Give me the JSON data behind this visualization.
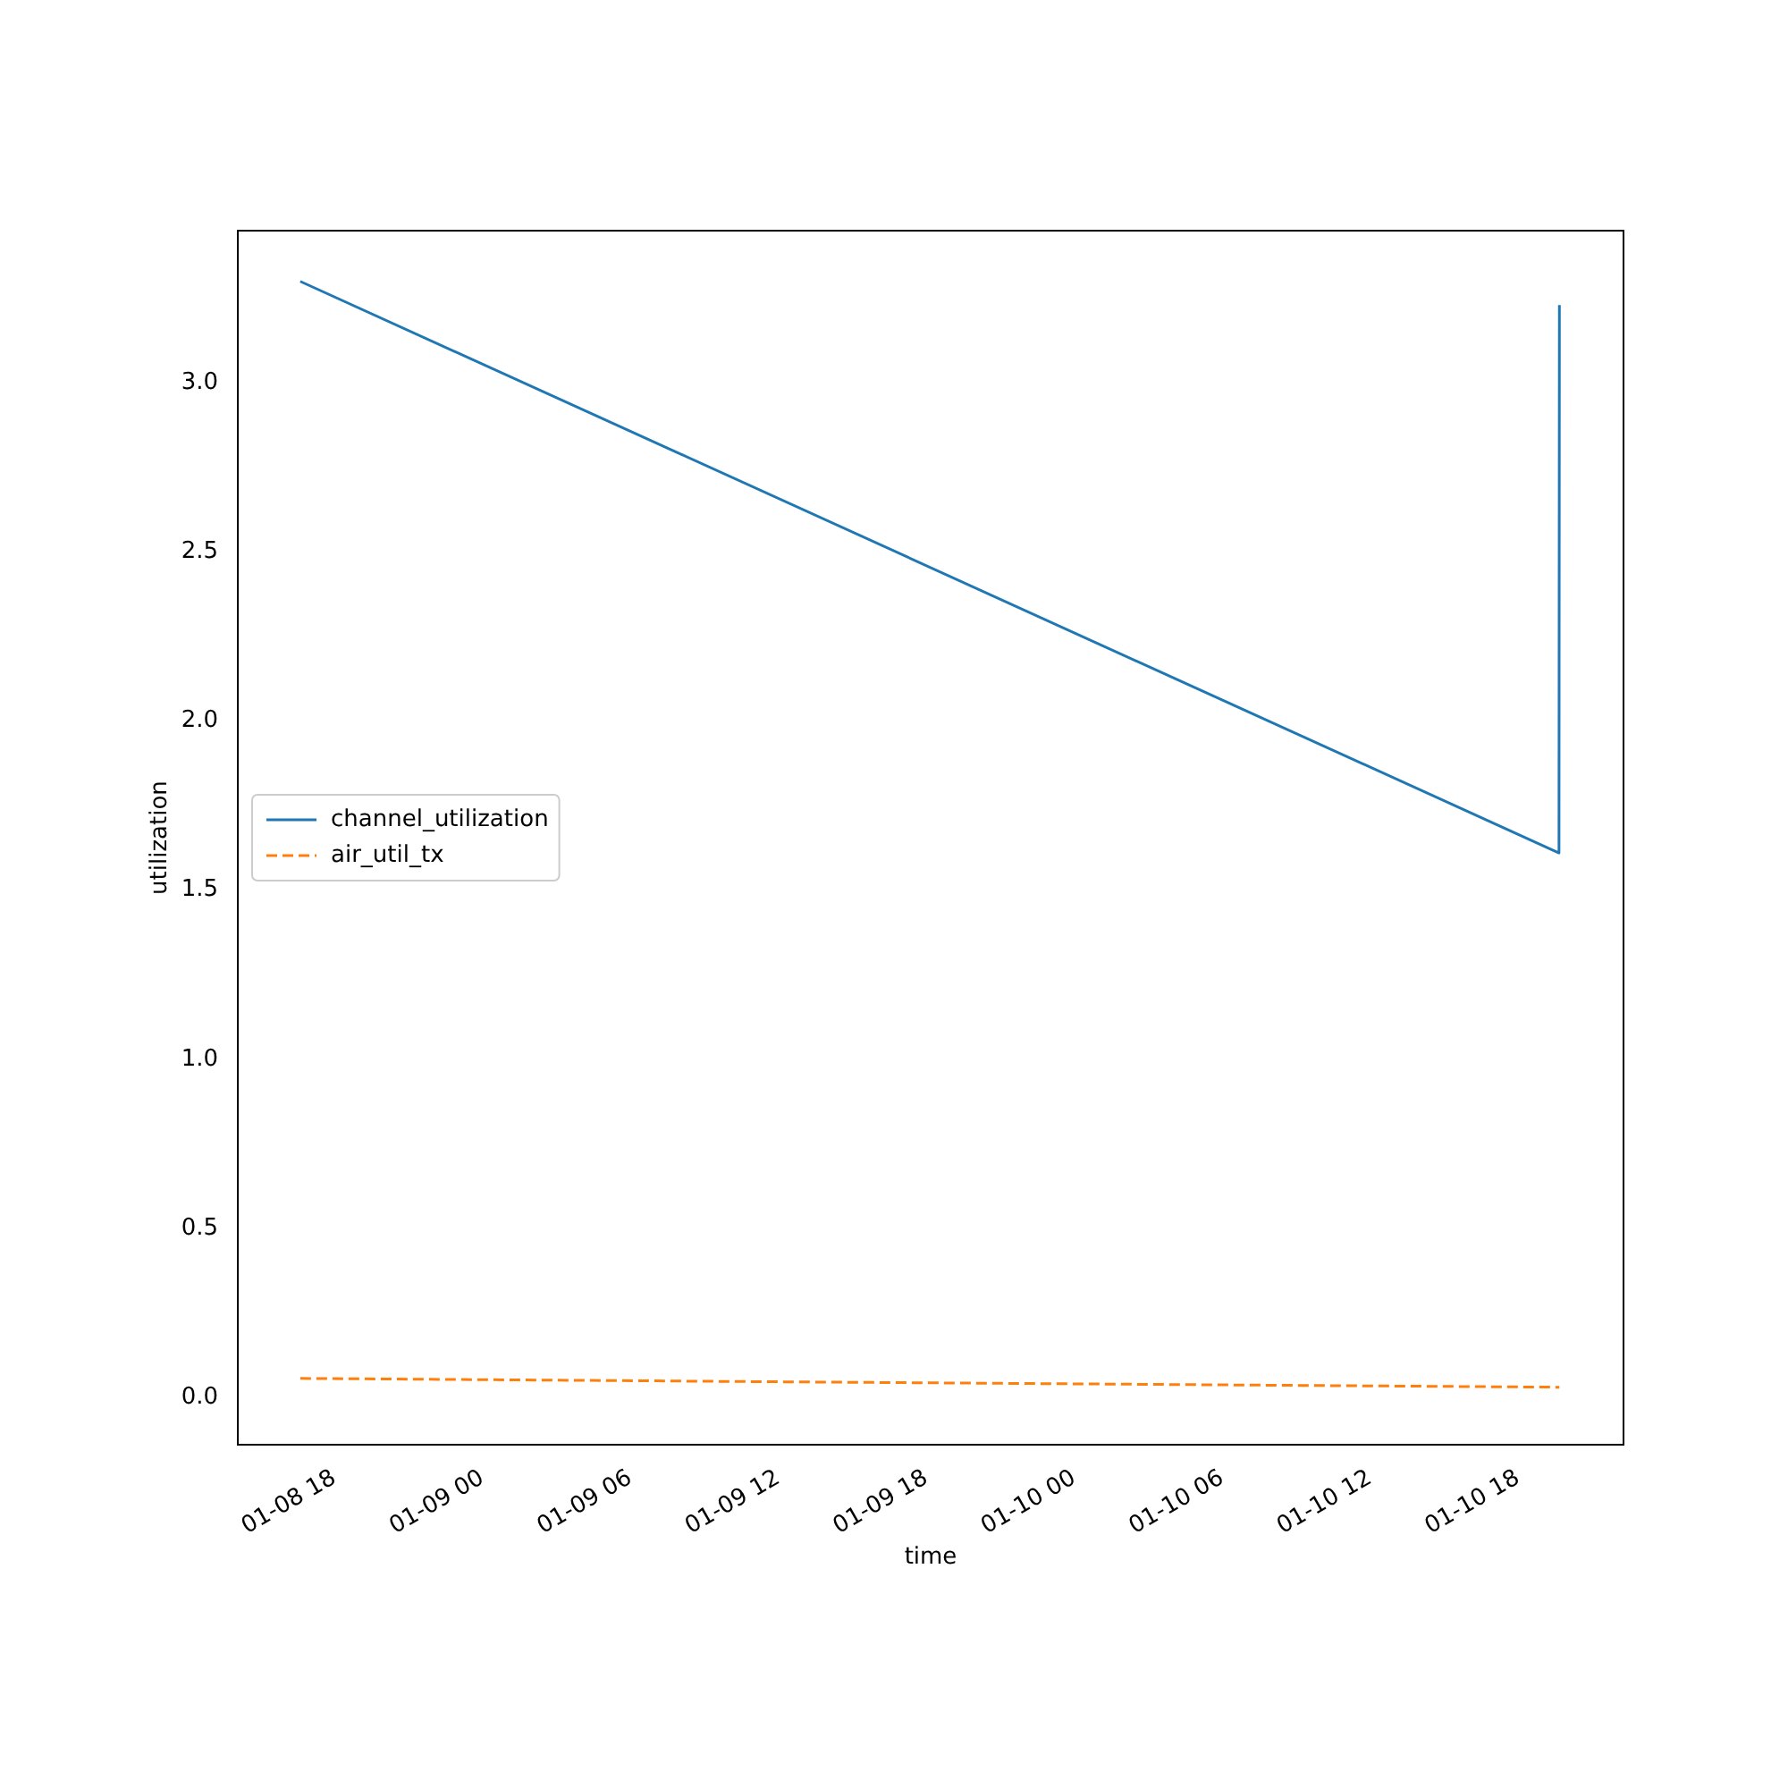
{
  "chart_data": {
    "type": "line",
    "xlabel": "time",
    "ylabel": "utilization",
    "xlim": [
      "--01-08T14:05",
      "--01-10T22:17"
    ],
    "xticks": [
      {
        "value": "--01-08T18:00",
        "label": "01-08 18"
      },
      {
        "value": "--01-09T00:00",
        "label": "01-09 00"
      },
      {
        "value": "--01-09T06:00",
        "label": "01-09 06"
      },
      {
        "value": "--01-09T12:00",
        "label": "01-09 12"
      },
      {
        "value": "--01-09T18:00",
        "label": "01-09 18"
      },
      {
        "value": "--01-10T00:00",
        "label": "01-10 00"
      },
      {
        "value": "--01-10T06:00",
        "label": "01-10 06"
      },
      {
        "value": "--01-10T12:00",
        "label": "01-10 12"
      },
      {
        "value": "--01-10T18:00",
        "label": "01-10 18"
      }
    ],
    "ylim": [
      -0.14,
      3.45
    ],
    "yticks": [
      {
        "value": 0,
        "label": "0.0"
      },
      {
        "value": 0.5,
        "label": "0.5"
      },
      {
        "value": 1,
        "label": "1.0"
      },
      {
        "value": 1.5,
        "label": "1.5"
      },
      {
        "value": 2,
        "label": "2.0"
      },
      {
        "value": 2.5,
        "label": "2.5"
      },
      {
        "value": 3,
        "label": "3.0"
      }
    ],
    "x": [
      "--01-08T16:37",
      "--01-10T19:40",
      "--01-10T19:41"
    ],
    "series": [
      {
        "name": "channel_utilization",
        "color": "#1f77b4",
        "line_style": "solid",
        "values": [
          3.3,
          1.61,
          3.23
        ]
      },
      {
        "name": "air_util_tx",
        "color": "#ff7f0e",
        "line_style": "dashed",
        "values": [
          0.056,
          0.03,
          0.03
        ]
      }
    ],
    "grid": false,
    "legend": "center left"
  }
}
